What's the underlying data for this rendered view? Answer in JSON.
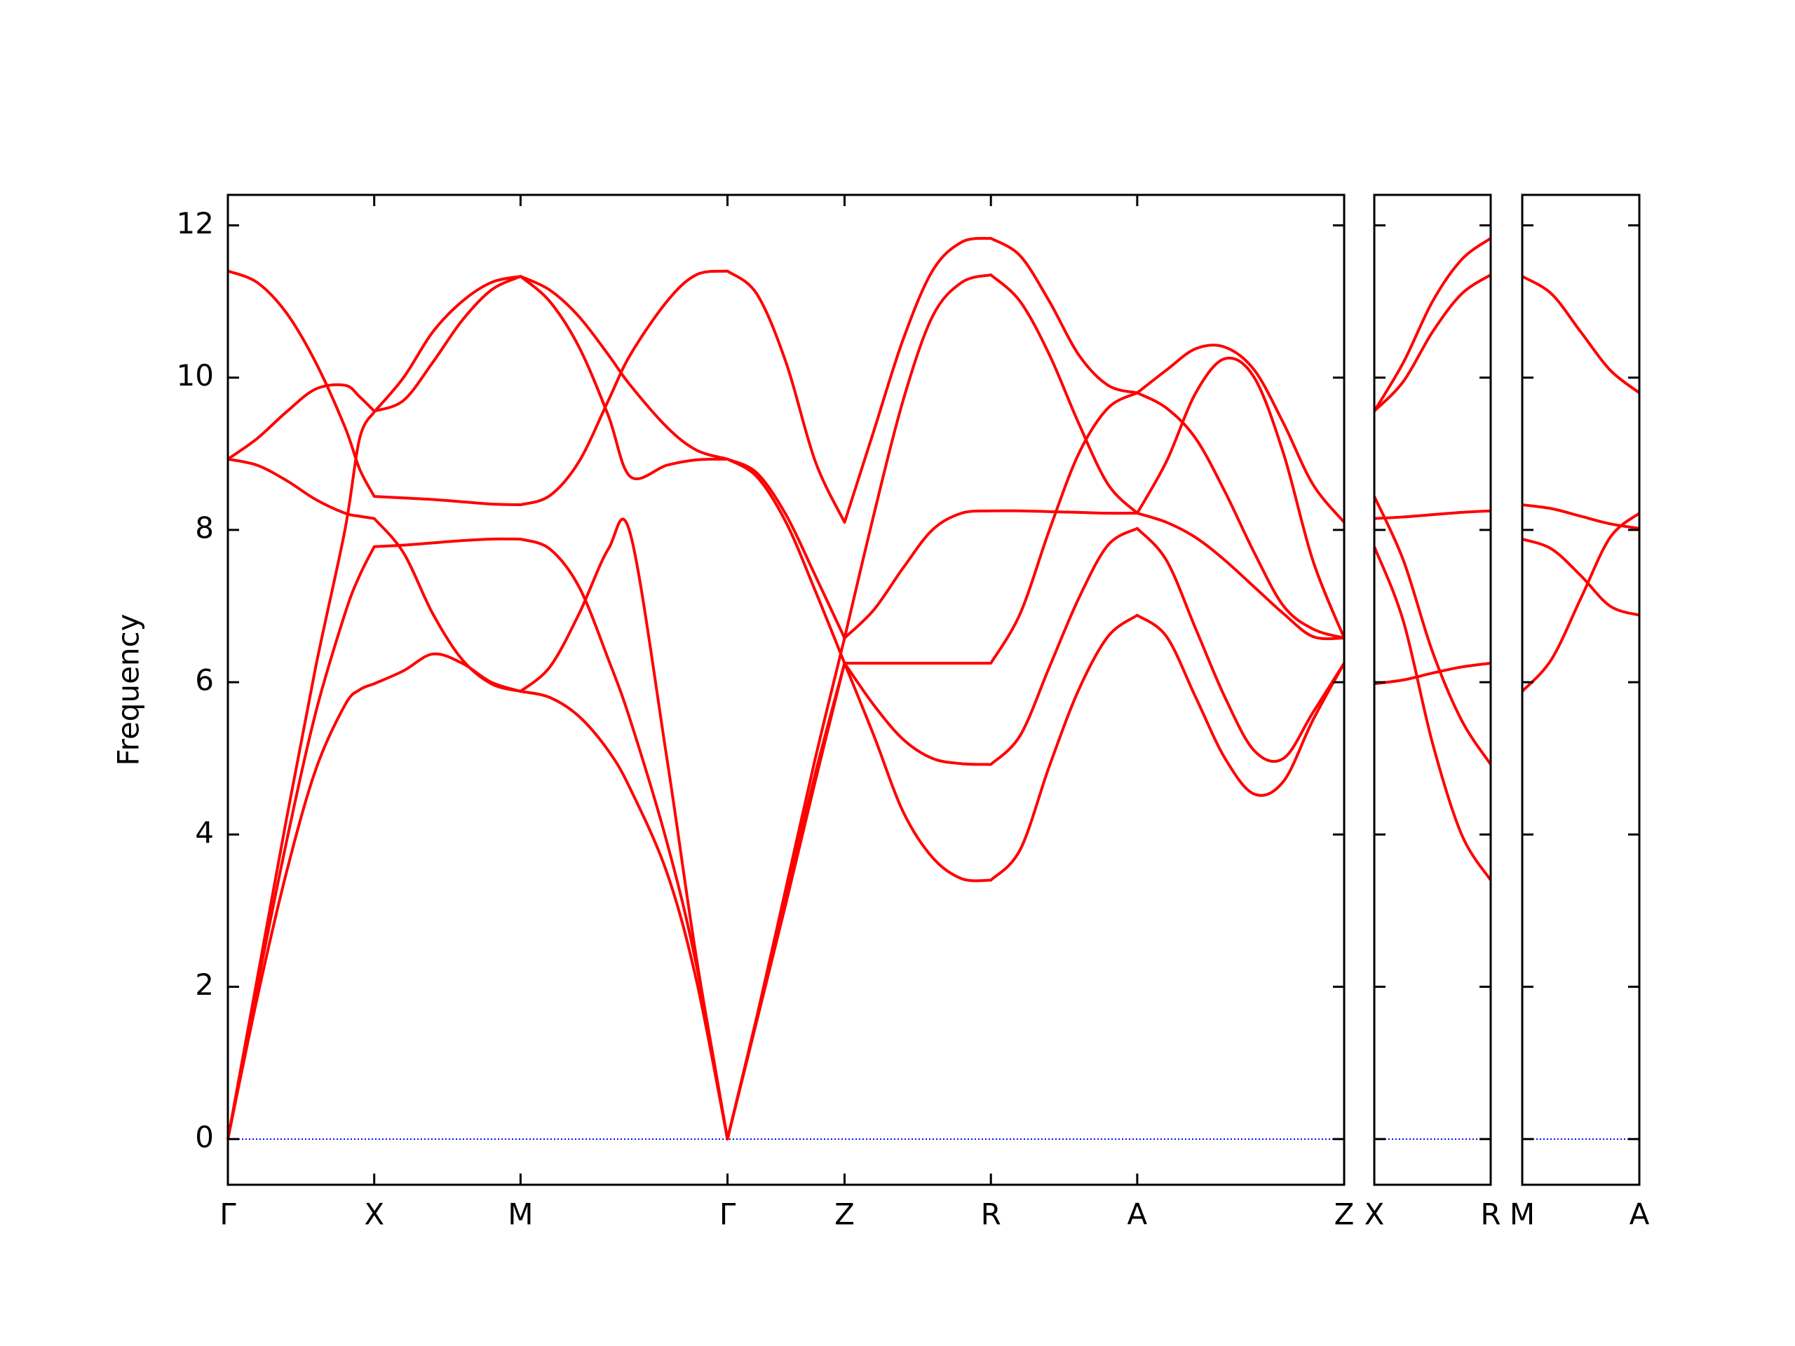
{
  "chart_data": [
    {
      "type": "line",
      "ylabel": "Frequency",
      "color": "#ff0000",
      "x": [
        0,
        0.2,
        0.4,
        0.6,
        0.8,
        0.9,
        1,
        1.2,
        1.4,
        1.6,
        1.8,
        2,
        2.2,
        2.4,
        2.6,
        2.75,
        3,
        3.2,
        3.414,
        3.614,
        3.814,
        4.014,
        4.214,
        4.414,
        4.614,
        4.814,
        5.014,
        5.214,
        5.414,
        5.614,
        5.814,
        6.014,
        6.214,
        6.414,
        6.614,
        6.814,
        7.014,
        7.214,
        7.414,
        7.628
      ],
      "xlim": [
        0,
        7.628
      ],
      "xticks": [
        {
          "value": 0,
          "label": "Γ"
        },
        {
          "value": 1,
          "label": "X"
        },
        {
          "value": 2,
          "label": "M"
        },
        {
          "value": 3.414,
          "label": "Γ"
        },
        {
          "value": 4.214,
          "label": "Z"
        },
        {
          "value": 5.214,
          "label": "R"
        },
        {
          "value": 6.214,
          "label": "A"
        },
        {
          "value": 7.628,
          "label": "Z"
        }
      ],
      "ylim": [
        -0.6,
        12.4
      ],
      "yticks": [
        0,
        2,
        4,
        6,
        8,
        10,
        12
      ],
      "hline": {
        "value": 0,
        "color": "#0000ff"
      },
      "series": [
        {
          "values": [
            11.4,
            11.25,
            10.85,
            10.2,
            9.35,
            8.8,
            8.44,
            8.42,
            8.4,
            8.37,
            8.34,
            8.33,
            8.45,
            8.9,
            9.7,
            10.3,
            11.0,
            11.35,
            11.4,
            11.1,
            10.2,
            8.9,
            8.1,
            9.3,
            10.5,
            11.4,
            11.78,
            11.83,
            11.6,
            11.0,
            10.3,
            9.9,
            9.8,
            10.1,
            10.38,
            10.4,
            10.1,
            9.4,
            8.6,
            8.1
          ]
        },
        {
          "values": [
            0,
            2.1,
            4.2,
            6.2,
            8.0,
            9.2,
            9.55,
            10.0,
            10.6,
            11.0,
            11.25,
            11.33,
            11.0,
            10.4,
            9.5,
            8.7,
            8.85,
            8.92,
            8.93,
            8.75,
            8.2,
            7.4,
            6.58,
            6.95,
            7.5,
            8.0,
            8.22,
            8.25,
            8.25,
            8.24,
            8.23,
            8.22,
            8.22,
            8.1,
            7.9,
            7.6,
            7.25,
            6.9,
            6.6,
            6.58
          ]
        },
        {
          "values": [
            8.93,
            9.2,
            9.55,
            9.85,
            9.9,
            9.75,
            9.56,
            9.7,
            10.2,
            10.75,
            11.15,
            11.33,
            11.15,
            10.8,
            10.3,
            9.9,
            9.35,
            9.05,
            8.93,
            8.7,
            8.1,
            7.2,
            6.25,
            6.25,
            6.25,
            6.25,
            6.25,
            6.25,
            6.9,
            8.0,
            9.0,
            9.6,
            9.8,
            9.6,
            9.2,
            8.5,
            7.7,
            7.0,
            6.7,
            6.58
          ]
        },
        {
          "values": [
            8.93,
            8.85,
            8.65,
            8.4,
            8.22,
            8.18,
            8.15,
            7.7,
            6.9,
            6.3,
            5.98,
            5.88,
            6.2,
            6.9,
            7.75,
            7.95,
            5.0,
            2.4,
            0,
            1.6,
            3.3,
            5.0,
            6.58,
            8.2,
            9.7,
            10.8,
            11.25,
            11.35,
            11.0,
            10.3,
            9.4,
            8.6,
            8.22,
            8.9,
            9.8,
            10.25,
            10.0,
            9.0,
            7.6,
            6.58
          ]
        },
        {
          "values": [
            0,
            2.0,
            3.9,
            5.6,
            6.9,
            7.4,
            7.78,
            7.8,
            7.83,
            7.86,
            7.88,
            7.88,
            7.75,
            7.25,
            6.3,
            5.5,
            3.9,
            2.3,
            0,
            1.6,
            3.2,
            4.8,
            6.25,
            5.7,
            5.25,
            5.0,
            4.93,
            4.92,
            5.3,
            6.2,
            7.1,
            7.8,
            8.02,
            7.6,
            6.7,
            5.8,
            5.1,
            5.0,
            5.6,
            6.25
          ]
        },
        {
          "values": [
            0,
            1.85,
            3.5,
            4.85,
            5.7,
            5.9,
            5.98,
            6.15,
            6.37,
            6.25,
            6.0,
            5.88,
            5.8,
            5.55,
            5.1,
            4.6,
            3.5,
            2.1,
            0,
            1.55,
            3.1,
            4.7,
            6.25,
            5.3,
            4.3,
            3.7,
            3.42,
            3.4,
            3.8,
            4.9,
            5.9,
            6.6,
            6.88,
            6.6,
            5.8,
            5.0,
            4.53,
            4.7,
            5.5,
            6.25
          ]
        }
      ]
    },
    {
      "type": "line",
      "color": "#ff0000",
      "x": [
        0,
        0.2,
        0.4,
        0.6,
        0.8
      ],
      "xlim": [
        0,
        0.8
      ],
      "xticks": [
        {
          "value": 0,
          "label": "X"
        },
        {
          "value": 0.8,
          "label": "R"
        }
      ],
      "ylim": [
        -0.6,
        12.4
      ],
      "yticks": [
        0,
        2,
        4,
        6,
        8,
        10,
        12
      ],
      "hline": {
        "value": 0,
        "color": "#0000ff"
      },
      "series": [
        {
          "values": [
            9.56,
            10.2,
            11.0,
            11.55,
            11.83
          ]
        },
        {
          "values": [
            9.56,
            9.95,
            10.6,
            11.1,
            11.35
          ]
        },
        {
          "values": [
            8.15,
            8.17,
            8.2,
            8.23,
            8.25
          ]
        },
        {
          "values": [
            8.44,
            7.6,
            6.4,
            5.5,
            4.92
          ]
        },
        {
          "values": [
            7.78,
            6.8,
            5.2,
            4.0,
            3.4
          ]
        },
        {
          "values": [
            5.98,
            6.03,
            6.12,
            6.2,
            6.25
          ]
        }
      ]
    },
    {
      "type": "line",
      "color": "#ff0000",
      "x": [
        0,
        0.2,
        0.4,
        0.6,
        0.8
      ],
      "xlim": [
        0,
        0.8
      ],
      "xticks": [
        {
          "value": 0,
          "label": "M"
        },
        {
          "value": 0.8,
          "label": "A"
        }
      ],
      "ylim": [
        -0.6,
        12.4
      ],
      "yticks": [
        0,
        2,
        4,
        6,
        8,
        10,
        12
      ],
      "hline": {
        "value": 0,
        "color": "#0000ff"
      },
      "series": [
        {
          "values": [
            11.33,
            11.1,
            10.6,
            10.1,
            9.8
          ]
        },
        {
          "values": [
            8.33,
            8.28,
            8.18,
            8.08,
            8.02
          ]
        },
        {
          "values": [
            7.88,
            7.75,
            7.4,
            7.0,
            6.88
          ]
        },
        {
          "values": [
            5.88,
            6.3,
            7.1,
            7.9,
            8.22
          ]
        }
      ]
    }
  ]
}
